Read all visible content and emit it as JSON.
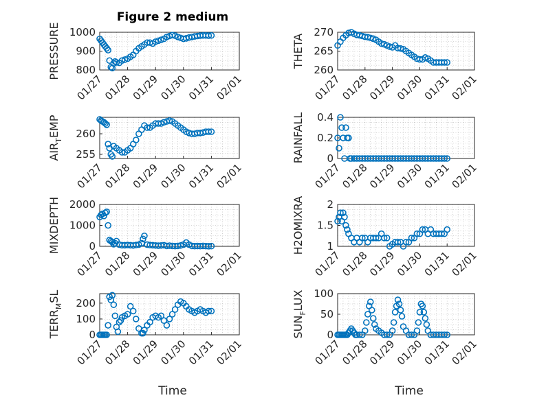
{
  "colors": {
    "marker": "#0072bd",
    "axis": "#262626",
    "grid": "#b0b0b0"
  },
  "chart_data": {
    "type": "scatter",
    "figure_title": "Figure 2 medium",
    "xlabel": "Time",
    "x_ticks": [
      "01/27",
      "01/28",
      "01/29",
      "01/30",
      "01/31",
      "02/01"
    ],
    "xlim": [
      "01/27",
      "02/01"
    ],
    "panels": [
      {
        "ylabel": "PRESSURE",
        "ylim": [
          800,
          1000
        ],
        "yticks": [
          800,
          900,
          1000
        ],
        "yticklabels": [
          "800",
          "900",
          "1000"
        ],
        "x": [
          0.0,
          0.05,
          0.1,
          0.15,
          0.2,
          0.25,
          0.3,
          0.35,
          0.4,
          0.45,
          0.5,
          0.55,
          0.6,
          0.7,
          0.8,
          0.9,
          1.0,
          1.1,
          1.2,
          1.3,
          1.4,
          1.5,
          1.6,
          1.7,
          1.8,
          1.9,
          2.0,
          2.1,
          2.2,
          2.3,
          2.4,
          2.5,
          2.6,
          2.7,
          2.8,
          2.9,
          3.0,
          3.1,
          3.2,
          3.3,
          3.4,
          3.5,
          3.6,
          3.7,
          3.8,
          3.9,
          4.0
        ],
        "y": [
          965,
          955,
          945,
          935,
          925,
          915,
          905,
          850,
          815,
          810,
          835,
          845,
          840,
          838,
          850,
          855,
          860,
          870,
          880,
          900,
          915,
          925,
          935,
          945,
          945,
          940,
          950,
          955,
          960,
          965,
          975,
          980,
          985,
          982,
          975,
          970,
          965,
          968,
          972,
          975,
          978,
          980,
          982,
          983,
          983,
          982,
          983
        ]
      },
      {
        "ylabel": "THETA",
        "ylim": [
          260,
          270
        ],
        "yticks": [
          260,
          265,
          270
        ],
        "yticklabels": [
          "260",
          "265",
          "270"
        ],
        "x": [
          0.0,
          0.1,
          0.2,
          0.3,
          0.4,
          0.5,
          0.6,
          0.7,
          0.8,
          0.9,
          1.0,
          1.1,
          1.2,
          1.3,
          1.4,
          1.5,
          1.6,
          1.7,
          1.8,
          1.9,
          2.0,
          2.1,
          2.2,
          2.3,
          2.4,
          2.5,
          2.6,
          2.7,
          2.8,
          2.9,
          3.0,
          3.1,
          3.2,
          3.3,
          3.4,
          3.5,
          3.6,
          3.7,
          3.8,
          3.9,
          4.0
        ],
        "y": [
          266.5,
          267.5,
          268.5,
          269.2,
          269.8,
          270.0,
          269.6,
          269.3,
          269.2,
          269.0,
          268.8,
          268.7,
          268.5,
          268.3,
          268.0,
          267.5,
          267.0,
          266.8,
          266.5,
          266.2,
          266.0,
          266.5,
          265.8,
          265.7,
          265.5,
          265.0,
          264.5,
          264.0,
          263.5,
          263.0,
          262.8,
          262.8,
          263.3,
          263.0,
          262.5,
          262.0,
          262.0,
          262.0,
          262.0,
          262.0,
          262.0
        ]
      },
      {
        "ylabel": "AIR_TEMP",
        "ylim": [
          254,
          264
        ],
        "yticks": [
          255,
          260
        ],
        "yticklabels": [
          "255",
          "260"
        ],
        "x": [
          0.0,
          0.05,
          0.1,
          0.15,
          0.2,
          0.25,
          0.3,
          0.35,
          0.4,
          0.45,
          0.5,
          0.6,
          0.7,
          0.8,
          0.9,
          1.0,
          1.1,
          1.2,
          1.3,
          1.4,
          1.5,
          1.6,
          1.7,
          1.8,
          1.9,
          2.0,
          2.1,
          2.2,
          2.3,
          2.4,
          2.5,
          2.6,
          2.7,
          2.8,
          2.9,
          3.0,
          3.1,
          3.2,
          3.3,
          3.4,
          3.5,
          3.6,
          3.7,
          3.8,
          3.9,
          4.0
        ],
        "y": [
          263.5,
          263.2,
          263.0,
          262.8,
          262.5,
          262.2,
          257.5,
          256.5,
          255.0,
          254.5,
          257.0,
          256.5,
          256.0,
          255.5,
          255.5,
          256.0,
          256.5,
          257.5,
          258.5,
          260.0,
          261.0,
          262.0,
          261.5,
          261.5,
          262.0,
          262.5,
          262.5,
          262.5,
          262.8,
          263.0,
          263.2,
          263.0,
          262.5,
          262.0,
          261.5,
          261.0,
          260.5,
          260.2,
          260.0,
          260.0,
          260.2,
          260.2,
          260.3,
          260.5,
          260.5,
          260.5
        ]
      },
      {
        "ylabel": "RAINFALL",
        "ylim": [
          0,
          0.4
        ],
        "yticks": [
          0,
          0.2,
          0.4
        ],
        "yticklabels": [
          "0",
          "0.2",
          "0.4"
        ],
        "x": [
          0.0,
          0.05,
          0.1,
          0.15,
          0.2,
          0.25,
          0.3,
          0.35,
          0.4,
          0.45,
          0.5,
          0.6,
          0.7,
          0.8,
          0.9,
          1.0,
          1.1,
          1.2,
          1.3,
          1.4,
          1.5,
          1.6,
          1.7,
          1.8,
          1.9,
          2.0,
          2.1,
          2.2,
          2.3,
          2.4,
          2.5,
          2.6,
          2.7,
          2.8,
          2.9,
          3.0,
          3.1,
          3.2,
          3.3,
          3.4,
          3.5,
          3.6,
          3.7,
          3.8,
          3.9,
          4.0
        ],
        "y": [
          0.2,
          0.1,
          0.4,
          0.3,
          0.2,
          0.0,
          0.3,
          0.2,
          0.2,
          0.0,
          0.0,
          0.0,
          0.0,
          0.0,
          0.0,
          0.0,
          0.0,
          0.0,
          0.0,
          0.0,
          0.0,
          0.0,
          0.0,
          0.0,
          0.0,
          0.0,
          0.0,
          0.0,
          0.0,
          0.0,
          0.0,
          0.0,
          0.0,
          0.0,
          0.0,
          0.0,
          0.0,
          0.0,
          0.0,
          0.0,
          0.0,
          0.0,
          0.0,
          0.0,
          0.0,
          0.0
        ]
      },
      {
        "ylabel": "MIXDEPTH",
        "ylim": [
          0,
          2000
        ],
        "yticks": [
          0,
          1000,
          2000
        ],
        "yticklabels": [
          "0",
          "1000",
          "2000"
        ],
        "x": [
          0.0,
          0.05,
          0.1,
          0.15,
          0.2,
          0.25,
          0.3,
          0.35,
          0.4,
          0.45,
          0.5,
          0.55,
          0.6,
          0.7,
          0.8,
          0.9,
          1.0,
          1.1,
          1.2,
          1.3,
          1.4,
          1.5,
          1.55,
          1.6,
          1.7,
          1.8,
          1.9,
          2.0,
          2.1,
          2.2,
          2.3,
          2.4,
          2.5,
          2.6,
          2.7,
          2.8,
          2.9,
          3.0,
          3.1,
          3.2,
          3.3,
          3.4,
          3.5,
          3.6,
          3.7,
          3.8,
          3.9,
          4.0
        ],
        "y": [
          1400,
          1500,
          1550,
          1450,
          1600,
          1650,
          1000,
          300,
          250,
          200,
          100,
          150,
          250,
          80,
          50,
          50,
          60,
          50,
          40,
          60,
          80,
          150,
          350,
          500,
          80,
          60,
          50,
          40,
          30,
          40,
          50,
          20,
          30,
          20,
          10,
          20,
          40,
          80,
          180,
          80,
          20,
          10,
          15,
          10,
          20,
          10,
          5,
          10
        ]
      },
      {
        "ylabel": "H2OMIXRA",
        "ylim": [
          1,
          2
        ],
        "yticks": [
          1,
          1.5,
          2
        ],
        "yticklabels": [
          "1",
          "1.5",
          "2"
        ],
        "x": [
          0.0,
          0.05,
          0.1,
          0.15,
          0.2,
          0.25,
          0.3,
          0.35,
          0.4,
          0.5,
          0.6,
          0.7,
          0.8,
          0.9,
          1.0,
          1.1,
          1.2,
          1.3,
          1.4,
          1.5,
          1.6,
          1.7,
          1.8,
          1.9,
          2.0,
          2.1,
          2.2,
          2.3,
          2.4,
          2.5,
          2.6,
          2.7,
          2.8,
          2.9,
          3.0,
          3.1,
          3.2,
          3.3,
          3.4,
          3.5,
          3.6,
          3.7,
          3.8,
          3.9,
          4.0
        ],
        "y": [
          1.6,
          1.7,
          1.8,
          1.6,
          1.8,
          1.7,
          1.5,
          1.4,
          1.3,
          1.2,
          1.1,
          1.2,
          1.1,
          1.2,
          1.2,
          1.1,
          1.2,
          1.2,
          1.2,
          1.2,
          1.3,
          1.2,
          1.2,
          1.0,
          1.05,
          1.1,
          1.1,
          1.1,
          1.0,
          1.1,
          1.1,
          1.2,
          1.2,
          1.3,
          1.3,
          1.4,
          1.4,
          1.3,
          1.4,
          1.3,
          1.3,
          1.3,
          1.3,
          1.3,
          1.4
        ]
      },
      {
        "ylabel": "TERR_MSL",
        "ylim": [
          0,
          260
        ],
        "yticks": [
          0,
          100,
          200
        ],
        "yticklabels": [
          "0",
          "100",
          "200"
        ],
        "x": [
          0.0,
          0.05,
          0.1,
          0.15,
          0.2,
          0.25,
          0.3,
          0.35,
          0.4,
          0.45,
          0.5,
          0.55,
          0.6,
          0.65,
          0.7,
          0.75,
          0.8,
          0.9,
          1.0,
          1.1,
          1.2,
          1.3,
          1.4,
          1.5,
          1.55,
          1.6,
          1.7,
          1.8,
          1.9,
          2.0,
          2.1,
          2.2,
          2.3,
          2.4,
          2.5,
          2.6,
          2.7,
          2.8,
          2.9,
          3.0,
          3.1,
          3.2,
          3.3,
          3.4,
          3.5,
          3.6,
          3.7,
          3.8,
          3.9,
          4.0
        ],
        "y": [
          0,
          0,
          0,
          0,
          0,
          0,
          60,
          240,
          220,
          250,
          190,
          120,
          50,
          20,
          80,
          90,
          110,
          120,
          130,
          180,
          150,
          100,
          40,
          10,
          10,
          30,
          60,
          80,
          110,
          120,
          110,
          120,
          90,
          60,
          100,
          130,
          160,
          190,
          210,
          200,
          180,
          160,
          150,
          140,
          150,
          160,
          150,
          140,
          150,
          150
        ]
      },
      {
        "ylabel": "SUN_FLUX",
        "ylim": [
          0,
          100
        ],
        "yticks": [
          0,
          50,
          100
        ],
        "yticklabels": [
          "0",
          "50",
          "100"
        ],
        "x": [
          0.0,
          0.05,
          0.1,
          0.15,
          0.2,
          0.25,
          0.3,
          0.35,
          0.4,
          0.45,
          0.5,
          0.55,
          0.6,
          0.65,
          0.7,
          0.8,
          0.9,
          1.0,
          1.05,
          1.1,
          1.15,
          1.2,
          1.25,
          1.3,
          1.35,
          1.4,
          1.5,
          1.6,
          1.7,
          1.8,
          1.9,
          2.0,
          2.05,
          2.1,
          2.15,
          2.2,
          2.25,
          2.3,
          2.35,
          2.4,
          2.5,
          2.6,
          2.7,
          2.8,
          2.9,
          2.95,
          3.0,
          3.05,
          3.1,
          3.15,
          3.2,
          3.25,
          3.3,
          3.4,
          3.5,
          3.6,
          3.7,
          3.8,
          3.9,
          4.0
        ],
        "y": [
          0,
          0,
          0,
          0,
          0,
          0,
          0,
          0,
          5,
          10,
          15,
          10,
          5,
          0,
          0,
          0,
          0,
          10,
          30,
          50,
          70,
          80,
          60,
          40,
          25,
          15,
          10,
          5,
          0,
          0,
          0,
          10,
          30,
          55,
          70,
          85,
          75,
          60,
          45,
          20,
          10,
          0,
          0,
          0,
          10,
          30,
          55,
          75,
          70,
          55,
          40,
          25,
          10,
          0,
          0,
          0,
          0,
          0,
          0,
          0
        ]
      }
    ]
  }
}
